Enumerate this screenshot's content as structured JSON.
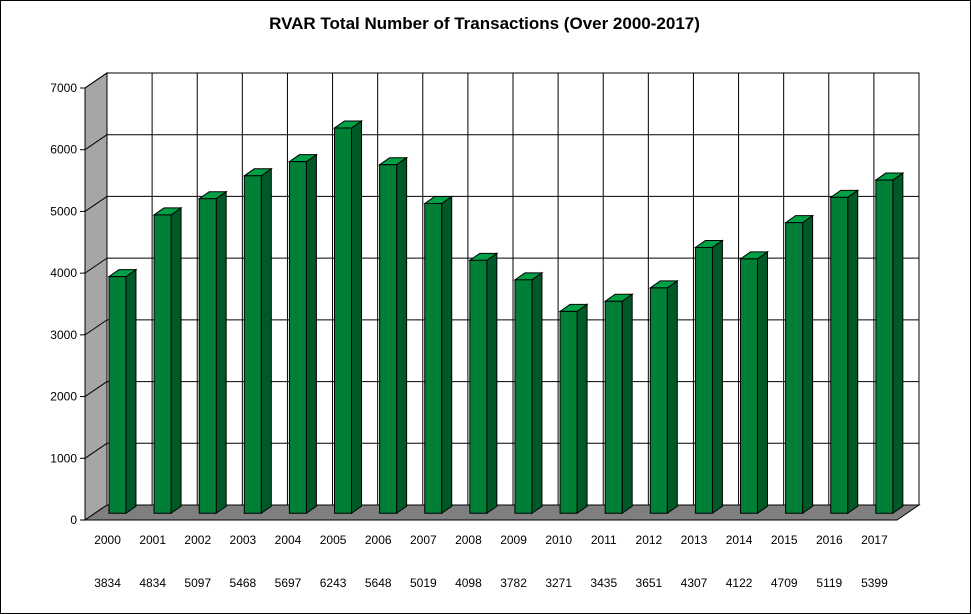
{
  "chart_data": {
    "type": "bar",
    "title": "RVAR Total Number of Transactions (Over 2000-2017)",
    "categories": [
      "2000",
      "2001",
      "2002",
      "2003",
      "2004",
      "2005",
      "2006",
      "2007",
      "2008",
      "2009",
      "2010",
      "2011",
      "2012",
      "2013",
      "2014",
      "2015",
      "2016",
      "2017"
    ],
    "values": [
      3834,
      4834,
      5097,
      5468,
      5697,
      6243,
      5648,
      5019,
      4098,
      3782,
      3271,
      3435,
      3651,
      4307,
      4122,
      4709,
      5119,
      5399
    ],
    "value_labels": [
      "3834",
      "4834",
      "5097",
      "5468",
      "5697",
      "6243",
      "5648",
      "5019",
      "4098",
      "3782",
      "3271",
      "3435",
      "3651",
      "4307",
      "4122",
      "4709",
      "5119",
      "5399"
    ],
    "ylim": [
      0,
      7000
    ],
    "yticks": [
      "0",
      "1000",
      "2000",
      "3000",
      "4000",
      "5000",
      "6000",
      "7000"
    ],
    "grid": true,
    "legend": "none",
    "style": "3d",
    "colors": {
      "bar_front": "#008037",
      "bar_side": "#005a27",
      "bar_top": "#00a046",
      "left_wall": "#a6a6a6",
      "floor": "#7f7f7f"
    }
  }
}
